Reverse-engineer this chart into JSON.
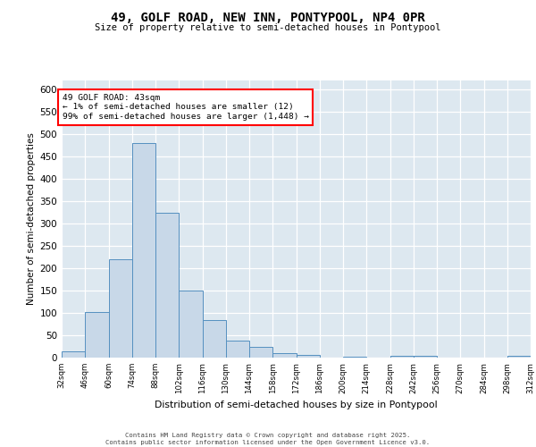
{
  "title": "49, GOLF ROAD, NEW INN, PONTYPOOL, NP4 0PR",
  "subtitle": "Size of property relative to semi-detached houses in Pontypool",
  "xlabel": "Distribution of semi-detached houses by size in Pontypool",
  "ylabel": "Number of semi-detached properties",
  "bar_color": "#c8d8e8",
  "bar_edge_color": "#5590c0",
  "background_color": "#dde8f0",
  "bins": [
    32,
    46,
    60,
    74,
    88,
    102,
    116,
    130,
    144,
    158,
    172,
    186,
    200,
    214,
    228,
    242,
    256,
    270,
    284,
    298,
    312
  ],
  "values": [
    15,
    102,
    221,
    480,
    324,
    150,
    84,
    38,
    25,
    10,
    7,
    0,
    3,
    0,
    5,
    5,
    0,
    0,
    0,
    4
  ],
  "annotation_title": "49 GOLF ROAD: 43sqm",
  "annotation_line1": "← 1% of semi-detached houses are smaller (12)",
  "annotation_line2": "99% of semi-detached houses are larger (1,448) →",
  "ylim": [
    0,
    620
  ],
  "yticks": [
    0,
    50,
    100,
    150,
    200,
    250,
    300,
    350,
    400,
    450,
    500,
    550,
    600
  ],
  "footer_line1": "Contains HM Land Registry data © Crown copyright and database right 2025.",
  "footer_line2": "Contains public sector information licensed under the Open Government Licence v3.0.",
  "tick_labels": [
    "32sqm",
    "46sqm",
    "60sqm",
    "74sqm",
    "88sqm",
    "102sqm",
    "116sqm",
    "130sqm",
    "144sqm",
    "158sqm",
    "172sqm",
    "186sqm",
    "200sqm",
    "214sqm",
    "228sqm",
    "242sqm",
    "256sqm",
    "270sqm",
    "284sqm",
    "298sqm",
    "312sqm"
  ]
}
